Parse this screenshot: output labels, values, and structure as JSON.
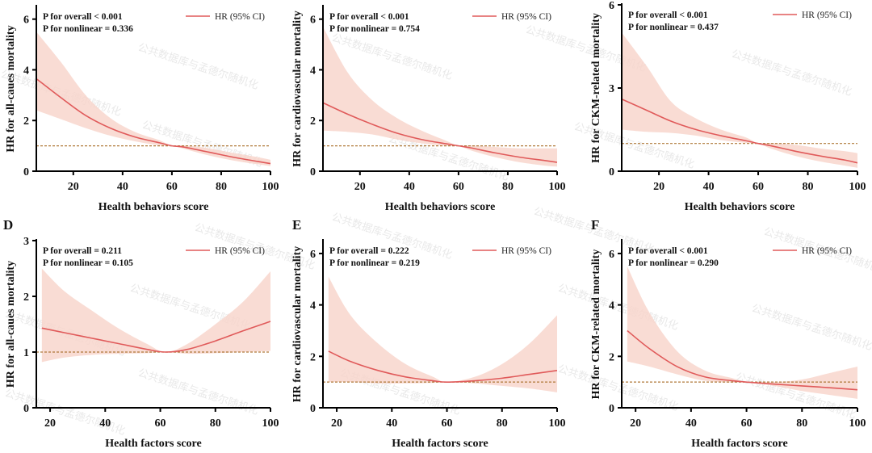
{
  "figure": {
    "watermark": "公共数据库与孟德尔随机化",
    "colors": {
      "curve": "#e05a5a",
      "ci_band": "#f8d3c9",
      "reference": "#b07a3a"
    }
  },
  "chart_data": [
    {
      "type": "line",
      "panel": "",
      "p_overall": "P for overall < 0.001",
      "p_nonlinear": "P for nonlinear = 0.336",
      "legend": "HR (95% CI)",
      "xlabel": "Health behaviors score",
      "ylabel": "HR for all-caues mortality",
      "xlim": [
        5,
        100
      ],
      "ylim": [
        0,
        6.5
      ],
      "xticks": [
        20,
        40,
        60,
        80,
        100
      ],
      "yticks": [
        0,
        2,
        4,
        6
      ],
      "reference": 1,
      "x": [
        5,
        15,
        25,
        35,
        45,
        55,
        60,
        65,
        75,
        85,
        95,
        100
      ],
      "hr": [
        3.65,
        2.9,
        2.2,
        1.7,
        1.35,
        1.12,
        1.0,
        0.95,
        0.75,
        0.55,
        0.38,
        0.3
      ],
      "lower": [
        2.4,
        2.05,
        1.7,
        1.4,
        1.18,
        1.02,
        1.0,
        0.88,
        0.62,
        0.42,
        0.27,
        0.2
      ],
      "upper": [
        5.5,
        4.3,
        3.0,
        2.1,
        1.55,
        1.22,
        1.0,
        1.02,
        0.9,
        0.72,
        0.55,
        0.45
      ]
    },
    {
      "type": "line",
      "panel": "",
      "p_overall": "P for overall < 0.001",
      "p_nonlinear": "P for nonlinear = 0.754",
      "legend": "HR (95% CI)",
      "xlabel": "Health behaviors score",
      "ylabel": "HR for cardiovascular mortality",
      "xlim": [
        5,
        100
      ],
      "ylim": [
        0,
        6.5
      ],
      "xticks": [
        20,
        40,
        60,
        80,
        100
      ],
      "yticks": [
        0,
        2,
        4,
        6
      ],
      "reference": 1,
      "x": [
        5,
        15,
        25,
        35,
        45,
        55,
        60,
        65,
        75,
        85,
        95,
        100
      ],
      "hr": [
        2.7,
        2.25,
        1.85,
        1.5,
        1.25,
        1.08,
        1.0,
        0.92,
        0.72,
        0.55,
        0.42,
        0.35
      ],
      "lower": [
        1.6,
        1.55,
        1.45,
        1.25,
        1.1,
        1.0,
        1.0,
        0.82,
        0.55,
        0.35,
        0.22,
        0.18
      ],
      "upper": [
        5.7,
        3.9,
        2.8,
        2.1,
        1.6,
        1.2,
        1.0,
        1.02,
        0.95,
        0.9,
        0.9,
        0.9
      ]
    },
    {
      "type": "line",
      "panel": "",
      "p_overall": "P for overall < 0.001",
      "p_nonlinear": "P for nonlinear = 0.437",
      "legend": "HR (95% CI)",
      "xlabel": "Health behaviors score",
      "ylabel": "HR for CKM-related mortality",
      "xlim": [
        5,
        100
      ],
      "ylim": [
        0,
        6
      ],
      "xticks": [
        20,
        40,
        60,
        80,
        100
      ],
      "yticks": [
        0,
        3,
        6
      ],
      "reference": 1,
      "x": [
        5,
        15,
        25,
        35,
        45,
        55,
        60,
        65,
        75,
        85,
        95,
        100
      ],
      "hr": [
        2.6,
        2.2,
        1.8,
        1.5,
        1.28,
        1.1,
        1.0,
        0.92,
        0.72,
        0.55,
        0.4,
        0.3
      ],
      "lower": [
        1.5,
        1.42,
        1.38,
        1.28,
        1.12,
        1.02,
        1.0,
        0.82,
        0.55,
        0.35,
        0.2,
        0.12
      ],
      "upper": [
        5.0,
        3.8,
        2.5,
        1.9,
        1.5,
        1.22,
        1.0,
        1.02,
        0.95,
        0.82,
        0.72,
        0.65
      ]
    },
    {
      "type": "line",
      "panel": "D",
      "p_overall": "P for overall = 0.211",
      "p_nonlinear": "P for nonlinear = 0.105",
      "legend": "HR (95% CI)",
      "xlabel": "Health factors score",
      "ylabel": "HR for all-caues mortality",
      "xlim": [
        15,
        100
      ],
      "ylim": [
        0,
        3
      ],
      "xticks": [
        20,
        40,
        60,
        80,
        100
      ],
      "yticks": [
        0,
        1,
        2,
        3
      ],
      "reference": 1,
      "x": [
        17,
        25,
        35,
        45,
        55,
        62,
        70,
        80,
        90,
        100
      ],
      "hr": [
        1.43,
        1.35,
        1.25,
        1.15,
        1.05,
        1.0,
        1.05,
        1.2,
        1.38,
        1.55
      ],
      "lower": [
        0.82,
        0.9,
        0.95,
        0.97,
        0.98,
        1.0,
        0.97,
        0.98,
        1.0,
        1.02
      ],
      "upper": [
        2.5,
        2.1,
        1.75,
        1.42,
        1.15,
        1.0,
        1.15,
        1.5,
        1.9,
        2.45
      ]
    },
    {
      "type": "line",
      "panel": "E",
      "p_overall": "P for overall = 0.222",
      "p_nonlinear": "P for nonlinear = 0.219",
      "legend": "HR (95% CI)",
      "xlabel": "Health factors score",
      "ylabel": "HR for cardiovascular mortality",
      "xlim": [
        15,
        100
      ],
      "ylim": [
        0,
        6.5
      ],
      "xticks": [
        20,
        40,
        60,
        80,
        100
      ],
      "yticks": [
        0,
        2,
        4,
        6
      ],
      "reference": 1,
      "x": [
        17,
        25,
        35,
        45,
        55,
        60,
        70,
        80,
        90,
        100
      ],
      "hr": [
        2.2,
        1.8,
        1.45,
        1.2,
        1.05,
        1.0,
        1.05,
        1.15,
        1.3,
        1.45
      ],
      "lower": [
        1.0,
        1.0,
        0.95,
        0.95,
        0.97,
        1.0,
        0.95,
        0.85,
        0.75,
        0.6
      ],
      "upper": [
        5.1,
        3.6,
        2.5,
        1.7,
        1.2,
        1.0,
        1.2,
        1.7,
        2.5,
        3.6
      ]
    },
    {
      "type": "line",
      "panel": "F",
      "p_overall": "P for overall < 0.001",
      "p_nonlinear": "P for nonlinear = 0.290",
      "legend": "HR (95% CI)",
      "xlabel": "Health factors score",
      "ylabel": "HR for CKM-related mortality",
      "xlim": [
        15,
        100
      ],
      "ylim": [
        0,
        6.5
      ],
      "xticks": [
        20,
        40,
        60,
        80,
        100
      ],
      "yticks": [
        0,
        2,
        4,
        6
      ],
      "reference": 1,
      "x": [
        17,
        25,
        35,
        45,
        55,
        60,
        70,
        80,
        90,
        100
      ],
      "hr": [
        3.0,
        2.3,
        1.6,
        1.2,
        1.05,
        1.0,
        0.92,
        0.85,
        0.78,
        0.7
      ],
      "lower": [
        1.8,
        1.6,
        1.3,
        1.05,
        0.98,
        1.0,
        0.85,
        0.65,
        0.5,
        0.35
      ],
      "upper": [
        5.5,
        3.7,
        2.2,
        1.45,
        1.15,
        1.0,
        1.0,
        1.1,
        1.35,
        1.6
      ]
    }
  ]
}
